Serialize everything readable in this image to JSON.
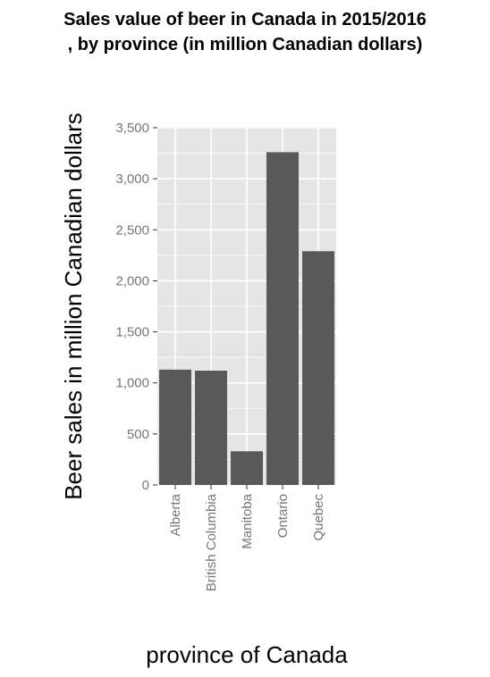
{
  "chart_data": {
    "type": "bar",
    "title": "Sales value of beer in Canada in 2015/2016",
    "subtitle": ", by province (in million Canadian dollars)",
    "xlabel": "province of Canada",
    "ylabel": "Beer sales in million Canadian dollars",
    "categories": [
      "Alberta",
      "British Columbia",
      "Manitoba",
      "Ontario",
      "Quebec"
    ],
    "values": [
      1130,
      1120,
      330,
      3260,
      2290
    ],
    "ylim": [
      0,
      3500
    ],
    "yticks": [
      0,
      500,
      1000,
      1500,
      2000,
      2500,
      3000,
      3500
    ],
    "ytick_labels": [
      "0",
      "500",
      "1,000",
      "1,500",
      "2,000",
      "2,500",
      "3,000",
      "3,500"
    ],
    "grid": true,
    "colors": {
      "panel": "#e5e5e5",
      "grid": "#ffffff",
      "bar": "#595959"
    }
  }
}
